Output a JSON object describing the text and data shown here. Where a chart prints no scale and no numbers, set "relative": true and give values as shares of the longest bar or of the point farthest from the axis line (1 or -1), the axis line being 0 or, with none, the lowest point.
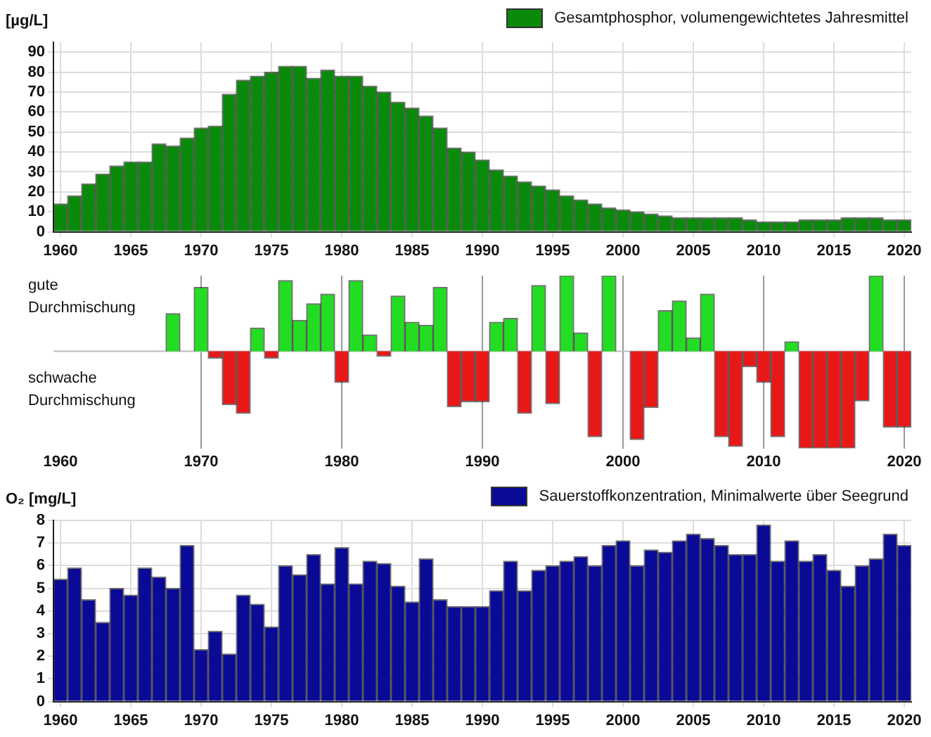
{
  "chart_data": [
    {
      "type": "bar",
      "ylabel": "[µg/L]",
      "legend": "top right",
      "grid": true,
      "x": [
        1960,
        1961,
        1962,
        1963,
        1964,
        1965,
        1966,
        1967,
        1968,
        1969,
        1970,
        1971,
        1972,
        1973,
        1974,
        1975,
        1976,
        1977,
        1978,
        1979,
        1980,
        1981,
        1982,
        1983,
        1984,
        1985,
        1986,
        1987,
        1988,
        1989,
        1990,
        1991,
        1992,
        1993,
        1994,
        1995,
        1996,
        1997,
        1998,
        1999,
        2000,
        2001,
        2002,
        2003,
        2004,
        2005,
        2006,
        2007,
        2008,
        2009,
        2010,
        2011,
        2012,
        2013,
        2014,
        2015,
        2016,
        2017,
        2018,
        2019,
        2020
      ],
      "xlim": [
        1959.5,
        2020.5
      ],
      "xticks": [
        1960,
        1965,
        1970,
        1975,
        1980,
        1985,
        1990,
        1995,
        2000,
        2005,
        2010,
        2015,
        2020
      ],
      "ylim": [
        0,
        95
      ],
      "yticks": [
        0,
        10,
        20,
        30,
        40,
        50,
        60,
        70,
        80,
        90
      ],
      "series": [
        {
          "name": "Gesamtphosphor, volumengewichtetes Jahresmittel",
          "color": "#0a8a0a",
          "values": [
            14,
            18,
            24,
            29,
            33,
            35,
            35,
            44,
            43,
            47,
            52,
            53,
            69,
            76,
            78,
            80,
            83,
            83,
            77,
            81,
            78,
            78,
            73,
            70,
            65,
            62,
            58,
            52,
            42,
            40,
            36,
            31,
            28,
            25,
            23,
            21,
            18,
            16,
            14,
            12,
            11,
            10,
            9,
            8,
            7,
            7,
            7,
            7,
            7,
            6,
            5,
            5,
            5,
            6,
            6,
            6,
            7,
            7,
            7,
            6,
            6
          ]
        }
      ]
    },
    {
      "type": "bar",
      "relative": true,
      "grid": "x",
      "x": [
        1968,
        1970,
        1971,
        1972,
        1973,
        1974,
        1975,
        1976,
        1977,
        1978,
        1979,
        1980,
        1981,
        1982,
        1983,
        1984,
        1985,
        1986,
        1987,
        1988,
        1989,
        1990,
        1991,
        1992,
        1993,
        1994,
        1995,
        1996,
        1997,
        1998,
        1999,
        2001,
        2002,
        2003,
        2004,
        2005,
        2006,
        2007,
        2008,
        2009,
        2010,
        2011,
        2012,
        2013,
        2014,
        2015,
        2016,
        2017,
        2018,
        2019,
        2020
      ],
      "xlim": [
        1959.5,
        2020.5
      ],
      "xticks": [
        1960,
        1970,
        1980,
        1990,
        2000,
        2010,
        2020
      ],
      "values": [
        0.39,
        0.66,
        -0.07,
        -0.55,
        -0.64,
        0.24,
        -0.07,
        0.73,
        0.32,
        0.49,
        0.59,
        -0.32,
        0.73,
        0.17,
        -0.05,
        0.57,
        0.3,
        0.27,
        0.66,
        -0.57,
        -0.52,
        -0.52,
        0.3,
        0.34,
        -0.64,
        0.68,
        -0.54,
        0.78,
        0.19,
        -0.88,
        0.78,
        -0.91,
        -0.58,
        0.42,
        0.52,
        0.14,
        0.59,
        -0.88,
        -0.98,
        -0.16,
        -0.32,
        -0.88,
        0.1,
        -1,
        -1,
        -1,
        -1,
        -0.51,
        0.78,
        -0.78,
        -0.78
      ],
      "colors": [
        "#22dd22",
        "#22dd22",
        "#e81818",
        "#e81818",
        "#e81818",
        "#22dd22",
        "#e81818",
        "#22dd22",
        "#22dd22",
        "#22dd22",
        "#22dd22",
        "#e81818",
        "#22dd22",
        "#22dd22",
        "#e81818",
        "#22dd22",
        "#22dd22",
        "#22dd22",
        "#22dd22",
        "#e81818",
        "#e81818",
        "#e81818",
        "#22dd22",
        "#22dd22",
        "#e81818",
        "#22dd22",
        "#e81818",
        "#22dd22",
        "#22dd22",
        "#e81818",
        "#22dd22",
        "#e81818",
        "#e81818",
        "#22dd22",
        "#22dd22",
        "#22dd22",
        "#22dd22",
        "#e81818",
        "#e81818",
        "#e81818",
        "#e81818",
        "#e81818",
        "#22dd22",
        "#e81818",
        "#e81818",
        "#e81818",
        "#e81818",
        "#e81818",
        "#22dd22",
        "#e81818",
        "#e81818"
      ],
      "annotations": [
        "gute Durchmischung",
        "schwache Durchmischung"
      ]
    },
    {
      "type": "bar",
      "ylabel": "O₂ [mg/L]",
      "legend": "top right",
      "grid": true,
      "x": [
        1960,
        1961,
        1962,
        1963,
        1964,
        1965,
        1966,
        1967,
        1968,
        1969,
        1970,
        1971,
        1972,
        1973,
        1974,
        1975,
        1976,
        1977,
        1978,
        1979,
        1980,
        1981,
        1982,
        1983,
        1984,
        1985,
        1986,
        1987,
        1988,
        1989,
        1990,
        1991,
        1992,
        1993,
        1994,
        1995,
        1996,
        1997,
        1998,
        1999,
        2000,
        2001,
        2002,
        2003,
        2004,
        2005,
        2006,
        2007,
        2008,
        2009,
        2010,
        2011,
        2012,
        2013,
        2014,
        2015,
        2016,
        2017,
        2018,
        2019,
        2020
      ],
      "xlim": [
        1959.5,
        2020.5
      ],
      "xticks": [
        1960,
        1965,
        1970,
        1975,
        1980,
        1985,
        1990,
        1995,
        2000,
        2005,
        2010,
        2015,
        2020
      ],
      "ylim": [
        0,
        8
      ],
      "yticks": [
        0,
        1,
        2,
        3,
        4,
        5,
        6,
        7,
        8
      ],
      "series": [
        {
          "name": "Sauerstoffkonzentration, Minimalwerte über Seegrund",
          "color": "#0a0a96",
          "values": [
            5.4,
            5.9,
            4.5,
            3.5,
            5.0,
            4.7,
            5.9,
            5.5,
            5.0,
            6.9,
            2.3,
            3.1,
            2.1,
            4.7,
            4.3,
            3.3,
            6.0,
            5.6,
            6.5,
            5.2,
            6.8,
            5.2,
            6.2,
            6.1,
            5.1,
            4.4,
            6.3,
            4.5,
            4.2,
            4.2,
            4.2,
            4.9,
            6.2,
            4.9,
            5.8,
            6.0,
            6.2,
            6.4,
            6.0,
            6.9,
            7.1,
            6.0,
            6.7,
            6.6,
            7.1,
            7.4,
            7.2,
            6.9,
            6.5,
            6.5,
            7.8,
            6.2,
            7.1,
            6.2,
            6.5,
            5.8,
            5.1,
            6.0,
            6.3,
            7.4,
            6.9
          ]
        }
      ]
    }
  ]
}
